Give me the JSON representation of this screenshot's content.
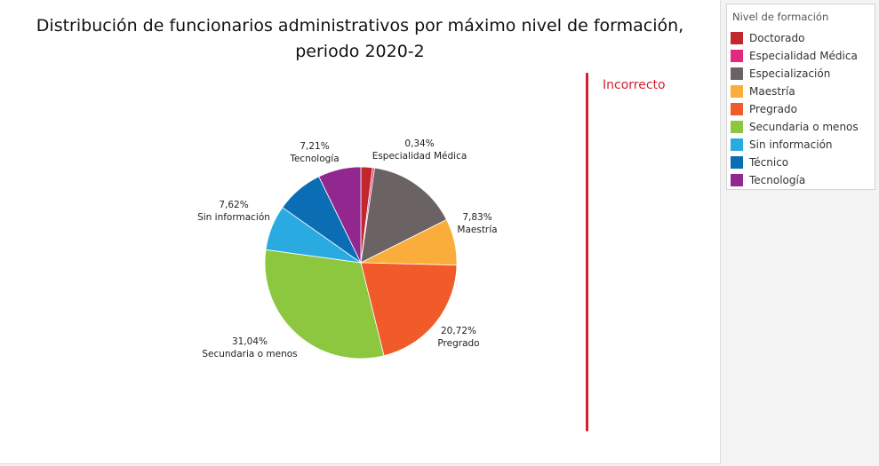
{
  "chart_data": {
    "type": "pie",
    "title": [
      "Distribución de funcionarios administrativos por máximo nivel de formación,",
      "periodo 2020-2"
    ],
    "slices": [
      {
        "name": "Doctorado",
        "value": 1.96,
        "label_pct": "",
        "color": "#c1272d"
      },
      {
        "name": "Especialidad Médica",
        "value": 0.34,
        "label_pct": "0,34%",
        "color": "#e4287c"
      },
      {
        "name": "Especialización",
        "value": 15.28,
        "label_pct": "",
        "color": "#6b6363"
      },
      {
        "name": "Maestría",
        "value": 7.83,
        "label_pct": "7,83%",
        "color": "#fbad3b"
      },
      {
        "name": "Pregrado",
        "value": 20.72,
        "label_pct": "20,72%",
        "color": "#f15a29"
      },
      {
        "name": "Secundaria o menos",
        "value": 31.04,
        "label_pct": "31,04%",
        "color": "#8dc63f"
      },
      {
        "name": "Sin información",
        "value": 7.62,
        "label_pct": "7,62%",
        "color": "#29abe2"
      },
      {
        "name": "Técnico",
        "value": 8.0,
        "label_pct": "",
        "color": "#0b6db3"
      },
      {
        "name": "Tecnología",
        "value": 7.21,
        "label_pct": "7,21%",
        "color": "#92278f"
      }
    ]
  },
  "status": {
    "text": "Incorrecto",
    "color": "#d2202f"
  },
  "legend": {
    "title": "Nivel de formación",
    "items": [
      {
        "label": "Doctorado",
        "color": "#c1272d"
      },
      {
        "label": "Especialidad Médica",
        "color": "#e4287c"
      },
      {
        "label": "Especialización",
        "color": "#6b6363"
      },
      {
        "label": "Maestría",
        "color": "#fbad3b"
      },
      {
        "label": "Pregrado",
        "color": "#f15a29"
      },
      {
        "label": "Secundaria o menos",
        "color": "#8dc63f"
      },
      {
        "label": "Sin información",
        "color": "#29abe2"
      },
      {
        "label": "Técnico",
        "color": "#0b6db3"
      },
      {
        "label": "Tecnología",
        "color": "#92278f"
      }
    ]
  }
}
